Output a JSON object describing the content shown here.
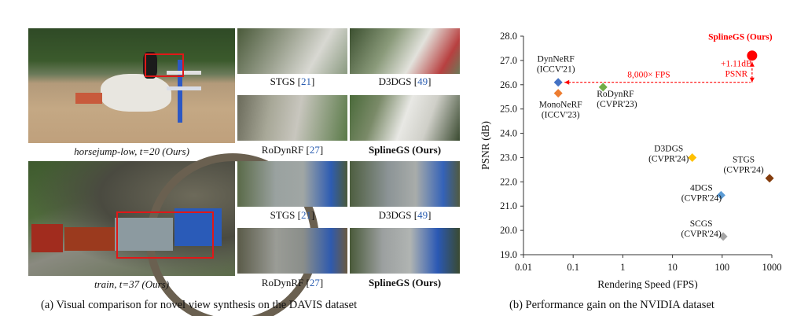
{
  "panel_a": {
    "main_captions": [
      "horsejump-low, t=20 (Ours)",
      "train, t=37 (Ours)"
    ],
    "thumb_captions": [
      {
        "name": "STGS",
        "ref": "21",
        "bold": false
      },
      {
        "name": "D3DGS",
        "ref": "49",
        "bold": false
      },
      {
        "name": "RoDynRF",
        "ref": "27",
        "bold": false
      },
      {
        "name": "SplineGS (Ours)",
        "ref": "",
        "bold": true
      },
      {
        "name": "STGS",
        "ref": "21",
        "bold": false
      },
      {
        "name": "D3DGS",
        "ref": "49",
        "bold": false
      },
      {
        "name": "RoDynRF",
        "ref": "27",
        "bold": false
      },
      {
        "name": "SplineGS (Ours)",
        "ref": "",
        "bold": true
      }
    ],
    "caption": "(a) Visual comparison for novel view synthesis on the DAVIS dataset"
  },
  "panel_b": {
    "caption": "(b) Performance gain on the NVIDIA dataset"
  },
  "chart_data": {
    "type": "scatter",
    "xlabel": "Rendering Speed (FPS)",
    "ylabel": "PSNR (dB)",
    "xscale": "log",
    "xlim": [
      0.01,
      1000
    ],
    "ylim": [
      19.0,
      28.0
    ],
    "x_ticks": [
      "0.01",
      "0.1",
      "1",
      "10",
      "100",
      "1000"
    ],
    "y_ticks": [
      "19.0",
      "20.0",
      "21.0",
      "22.0",
      "23.0",
      "24.0",
      "25.0",
      "26.0",
      "27.0",
      "28.0"
    ],
    "grid": false,
    "points": [
      {
        "label": [
          "DynNeRF",
          "(ICCV'21)"
        ],
        "x": 0.05,
        "y": 26.1,
        "color": "#4472c4",
        "marker": "diamond"
      },
      {
        "label": [
          "MonoNeRF",
          "(ICCV'23)"
        ],
        "x": 0.05,
        "y": 25.65,
        "color": "#ed7d31",
        "marker": "diamond"
      },
      {
        "label": [
          "RoDynRF",
          "(CVPR'23)"
        ],
        "x": 0.4,
        "y": 25.9,
        "color": "#70ad47",
        "marker": "diamond"
      },
      {
        "label": [
          "D3DGS",
          "(CVPR'24)"
        ],
        "x": 25,
        "y": 23.0,
        "color": "#ffc000",
        "marker": "diamond"
      },
      {
        "label": [
          "STGS",
          "(CVPR'24)"
        ],
        "x": 900,
        "y": 22.15,
        "color": "#843c0c",
        "marker": "diamond"
      },
      {
        "label": [
          "4DGS",
          "(CVPR'24)"
        ],
        "x": 95,
        "y": 21.45,
        "color": "#5b9bd5",
        "marker": "diamond"
      },
      {
        "label": [
          "SCGS",
          "(CVPR'24)"
        ],
        "x": 105,
        "y": 19.75,
        "color": "#a5a5a5",
        "marker": "diamond"
      },
      {
        "label": [
          "SplineGS (Ours)"
        ],
        "x": 400,
        "y": 27.2,
        "color": "#ff0000",
        "marker": "circle"
      }
    ],
    "annotations": {
      "fps_gain": "8,000× FPS",
      "psnr_gain": [
        "+1.11dB",
        "PSNR"
      ]
    }
  }
}
